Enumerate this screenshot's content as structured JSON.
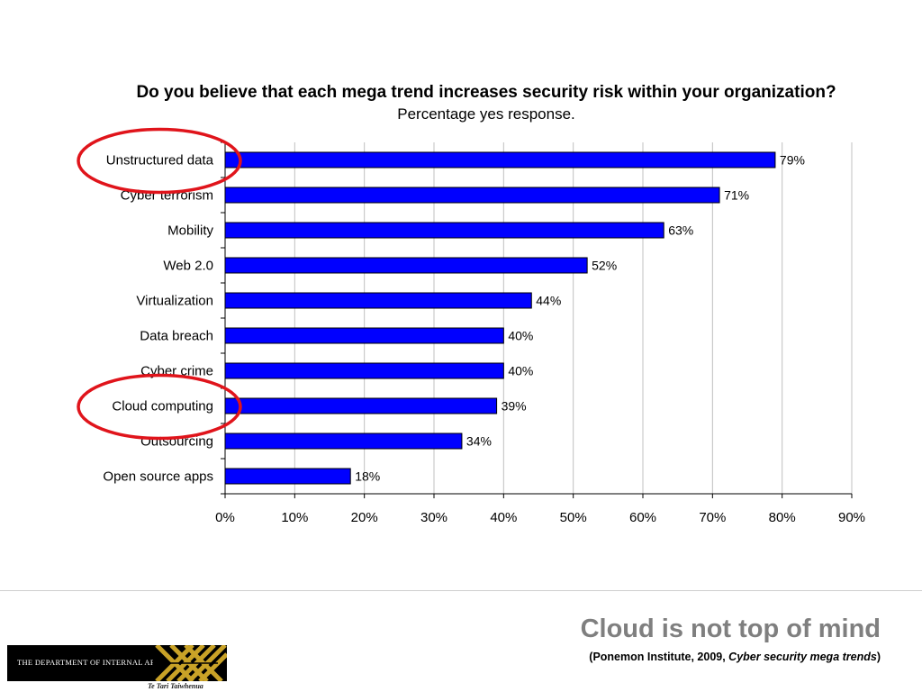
{
  "chart_data": {
    "type": "bar",
    "orientation": "horizontal",
    "title": "Do you believe that each mega trend increases security risk within your organization?",
    "subtitle": "Percentage yes response.",
    "categories": [
      "Unstructured data",
      "Cyber terrorism",
      "Mobility",
      "Web 2.0",
      "Virtualization",
      "Data breach",
      "Cyber crime",
      "Cloud computing",
      "Outsourcing",
      "Open source apps"
    ],
    "values": [
      79,
      71,
      63,
      52,
      44,
      40,
      40,
      39,
      34,
      18
    ],
    "value_labels": [
      "79%",
      "71%",
      "63%",
      "52%",
      "44%",
      "40%",
      "40%",
      "39%",
      "34%",
      "18%"
    ],
    "xlim": [
      0,
      90
    ],
    "xticks": [
      "0%",
      "10%",
      "20%",
      "30%",
      "40%",
      "50%",
      "60%",
      "70%",
      "80%",
      "90%"
    ],
    "grid": "vertical",
    "highlighted": [
      "Unstructured data",
      "Cloud computing"
    ],
    "bar_color": "#0000ff",
    "highlight_color": "#e0141b"
  },
  "footer": {
    "title": "Cloud is not top of mind",
    "citation_prefix": "(Ponemon Institute, 2009, ",
    "citation_italic": "Cyber security mega trends",
    "citation_suffix": ")"
  },
  "logo": {
    "text": "THE DEPARTMENT OF INTERNAL AFFAIRS",
    "subtext": "Te Tari Taiwhenua"
  }
}
